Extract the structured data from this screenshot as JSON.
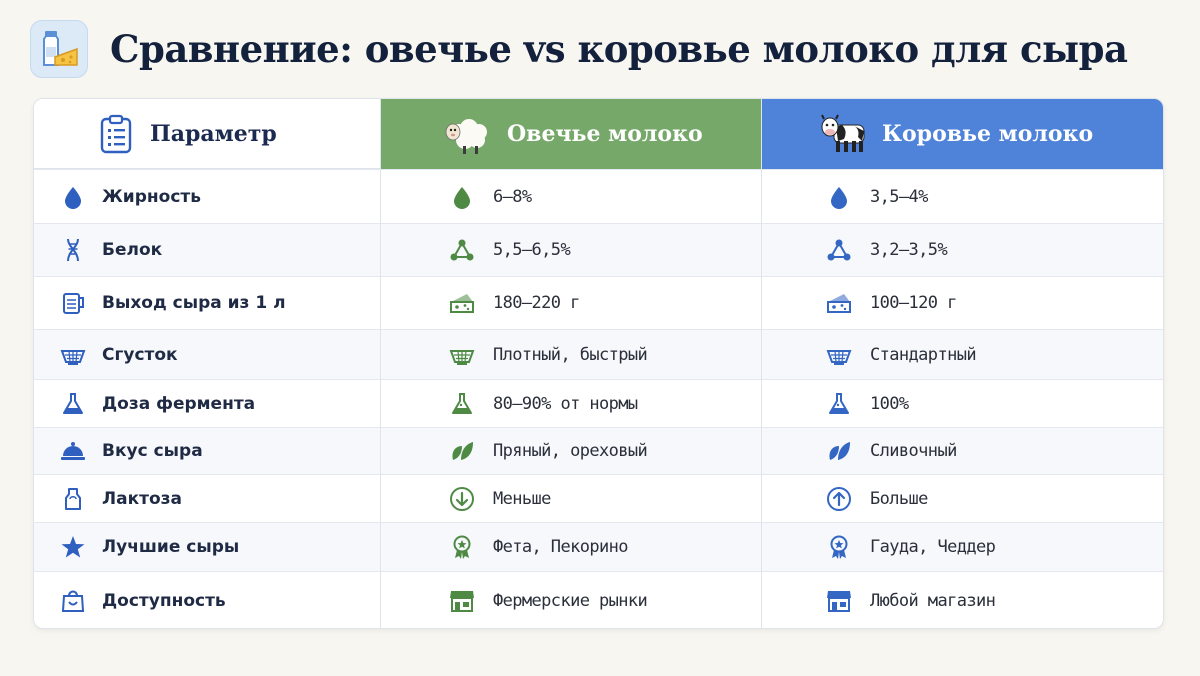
{
  "title": "Сравнение: овечье vs коровье молоко для сыра",
  "colors": {
    "sheep": "#76a86a",
    "cow": "#4f82d9",
    "param_icon": "#2f5fbf",
    "sheep_icon": "#4f8a45",
    "cow_icon": "#3466c4"
  },
  "headers": {
    "param": "Параметр",
    "sheep": "Овечье молоко",
    "cow": "Коровье молоко"
  },
  "rows": [
    {
      "param": "Жирность",
      "sheep": "6–8%",
      "cow": "3,5–4%",
      "icon": "drop-icon"
    },
    {
      "param": "Белок",
      "sheep": "5,5–6,5%",
      "cow": "3,2–3,5%",
      "icon": "molecule-icon"
    },
    {
      "param": "Выход сыра из 1 л",
      "sheep": "180–220 г",
      "cow": "100–120 г",
      "icon": "cheese-icon"
    },
    {
      "param": "Сгусток",
      "sheep": "Плотный, быстрый",
      "cow": "Стандартный",
      "icon": "strainer-icon"
    },
    {
      "param": "Доза фермента",
      "sheep": "80–90% от нормы",
      "cow": "100%",
      "icon": "flask-icon"
    },
    {
      "param": "Вкус сыра",
      "sheep": "Пряный, ореховый",
      "cow": "Сливочный",
      "icon": "leaf-icon"
    },
    {
      "param": "Лактоза",
      "sheep": "Меньше",
      "cow": "Больше",
      "icon": "arrow-circle-icon"
    },
    {
      "param": "Лучшие сыры",
      "sheep": "Фета, Пекорино",
      "cow": "Гауда, Чеддер",
      "icon": "award-icon"
    },
    {
      "param": "Доступность",
      "sheep": "Фермерские рынки",
      "cow": "Любой магазин",
      "icon": "shop-icon"
    }
  ]
}
